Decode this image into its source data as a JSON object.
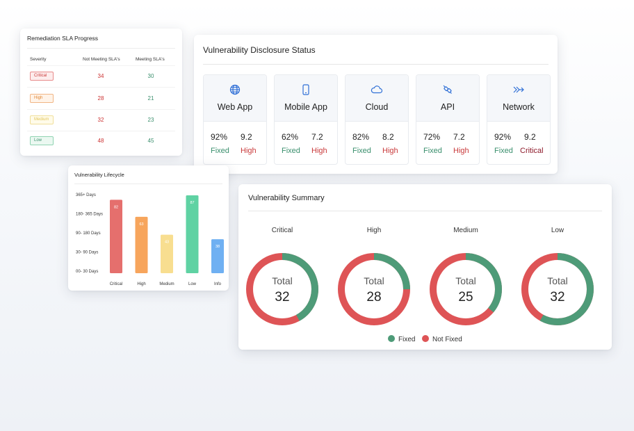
{
  "colors": {
    "fixed": "#4e9b78",
    "not_fixed": "#de5456",
    "critical_text": "#c9393a",
    "fixed_text": "#3a8f6d"
  },
  "sla": {
    "title": "Remediation SLA Progress",
    "headers": {
      "severity": "Severity",
      "not_meeting": "Not Meeting SLA's",
      "meeting": "Meeting SLA's"
    },
    "rows": [
      {
        "severity": "Critical",
        "not_meeting": "34",
        "meeting": "30"
      },
      {
        "severity": "High",
        "not_meeting": "28",
        "meeting": "21"
      },
      {
        "severity": "Medium",
        "not_meeting": "32",
        "meeting": "23"
      },
      {
        "severity": "Low",
        "not_meeting": "48",
        "meeting": "45"
      }
    ]
  },
  "disclosure": {
    "title": "Vulnerability Disclosure Status",
    "categories": [
      {
        "name": "Web App",
        "icon": "globe-icon",
        "pct": "92%",
        "score": "9.2",
        "fixed_label": "Fixed",
        "severity": "High"
      },
      {
        "name": "Mobile App",
        "icon": "mobile-icon",
        "pct": "62%",
        "score": "7.2",
        "fixed_label": "Fixed",
        "severity": "High"
      },
      {
        "name": "Cloud",
        "icon": "cloud-icon",
        "pct": "82%",
        "score": "8.2",
        "fixed_label": "Fixed",
        "severity": "High"
      },
      {
        "name": "API",
        "icon": "plug-icon",
        "pct": "72%",
        "score": "7.2",
        "fixed_label": "Fixed",
        "severity": "High"
      },
      {
        "name": "Network",
        "icon": "network-icon",
        "pct": "92%",
        "score": "9.2",
        "fixed_label": "Fixed",
        "severity": "Critical"
      }
    ]
  },
  "lifecycle": {
    "title": "Vulnerability Lifecycle",
    "chart_data": {
      "type": "bar",
      "title": "Vulnerability Lifecycle",
      "categories": [
        "Critical",
        "High",
        "Medium",
        "Low",
        "Info"
      ],
      "values": [
        82,
        63,
        43,
        87,
        38
      ],
      "data_labels": [
        "82",
        "63",
        "43",
        "87",
        "38"
      ],
      "y_tick_labels": [
        "365+ Days",
        "180- 365 Days",
        "90- 180 Days",
        "30- 90 Days",
        "00- 30 Days"
      ],
      "ylim": [
        0,
        87
      ],
      "colors": [
        "#e56f6d",
        "#f7a55c",
        "#f8de90",
        "#5fd2a3",
        "#6fb0f2"
      ],
      "grid": false
    }
  },
  "summary": {
    "title": "Vulnerability Summary",
    "total_label": "Total",
    "legend": {
      "fixed": "Fixed",
      "not_fixed": "Not Fixed"
    },
    "chart_data": {
      "type": "pie",
      "title": "Vulnerability Summary",
      "categories": [
        "Critical",
        "High",
        "Medium",
        "Low"
      ],
      "totals": [
        "32",
        "28",
        "25",
        "32"
      ],
      "series": [
        {
          "name": "Fixed",
          "values": [
            0.42,
            0.25,
            0.36,
            0.58
          ]
        },
        {
          "name": "Not Fixed",
          "values": [
            0.58,
            0.75,
            0.64,
            0.42
          ]
        }
      ]
    }
  }
}
